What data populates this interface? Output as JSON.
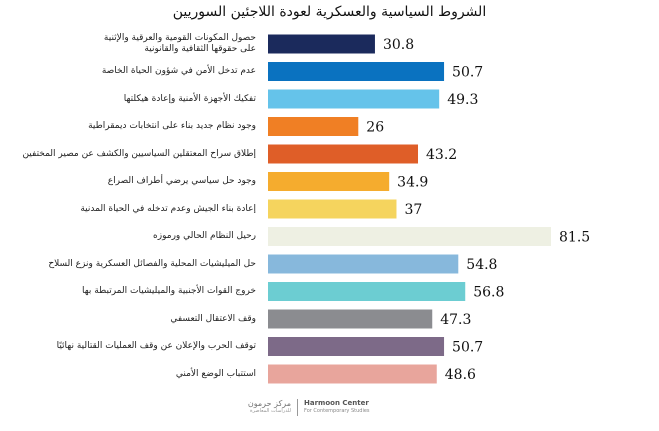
{
  "chart_data": {
    "type": "bar",
    "orientation": "horizontal",
    "title": "الشروط السياسية والعسكرية لعودة اللاجئين السوريين",
    "categories": [
      [
        "حصول المكونات القومية والعرقية والإثنية",
        "على حقوقها الثقافية والقانونية"
      ],
      [
        "عدم تدخل الأمن في شؤون الحياة الخاصة"
      ],
      [
        "تفكيك الأجهزة الأمنية وإعادة هيكلتها"
      ],
      [
        "وجود نظام جديد بناء على انتخابات ديمقراطية"
      ],
      [
        "إطلاق سراح المعتقلين السياسيين والكشف عن مصير المختفين"
      ],
      [
        "وجود حل سياسي يرضي أطراف الصراع"
      ],
      [
        "إعادة بناء الجيش وعدم تدخله في الحياة المدنية"
      ],
      [
        "رحيل النظام الحالي ورموزه"
      ],
      [
        "حل الميليشيات المحلية والفصائل العسكرية ونزع السلاح"
      ],
      [
        "خروج القوات الأجنبية والميليشيات المرتبطة بها"
      ],
      [
        "وقف الاعتقال التعسفي"
      ],
      [
        "توقف الحرب والإعلان عن وقف العمليات القتالية نهائيًا"
      ],
      [
        "استتباب الوضع الأمني"
      ]
    ],
    "values": [
      30.8,
      50.7,
      49.3,
      26,
      43.2,
      34.9,
      37,
      81.5,
      54.8,
      56.8,
      47.3,
      50.7,
      48.6
    ],
    "colors": [
      "#1b2a5c",
      "#0a72c0",
      "#65c3ea",
      "#f07f24",
      "#df5e28",
      "#f5ac2e",
      "#f5d45e",
      "#eef0e3",
      "#87b8dc",
      "#6ccdd2",
      "#8b8c90",
      "#7d6a88",
      "#e8a59c"
    ],
    "xlim": [
      0,
      81.5
    ],
    "grid": false,
    "legend": "none"
  },
  "footer": {
    "logo_ar": "مركز حرمون",
    "logo_ar_sub": "للدراسات المعاصرة",
    "logo_en": "Harmoon Center",
    "logo_en_sub": "For Contemporary Studies"
  }
}
